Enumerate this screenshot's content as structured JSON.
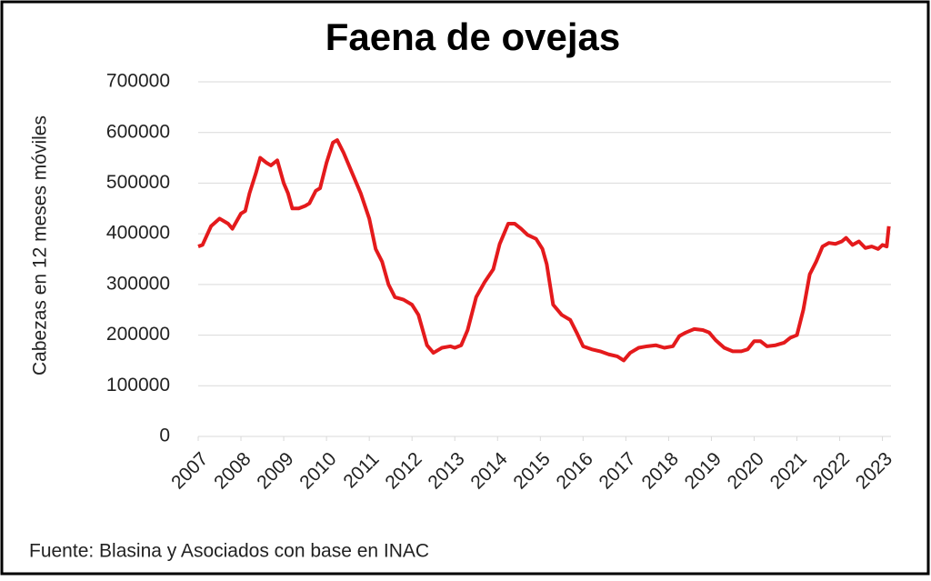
{
  "chart_data": {
    "type": "line",
    "title": "Faena de ovejas",
    "y_label": "Cabezas en 12 meses móviles",
    "source": "Fuente: Blasina y Asociados con base en INAC",
    "series": [
      {
        "name": "Faena de ovejas",
        "color": "#e41a1c",
        "x": [
          2007.0,
          2007.1,
          2007.3,
          2007.5,
          2007.7,
          2007.8,
          2008.0,
          2008.1,
          2008.2,
          2008.35,
          2008.45,
          2008.6,
          2008.7,
          2008.85,
          2009.0,
          2009.1,
          2009.2,
          2009.35,
          2009.5,
          2009.6,
          2009.75,
          2009.85,
          2010.0,
          2010.15,
          2010.25,
          2010.4,
          2010.6,
          2010.8,
          2011.0,
          2011.15,
          2011.3,
          2011.45,
          2011.6,
          2011.8,
          2012.0,
          2012.15,
          2012.35,
          2012.5,
          2012.7,
          2012.9,
          2013.0,
          2013.15,
          2013.3,
          2013.5,
          2013.7,
          2013.9,
          2014.05,
          2014.25,
          2014.4,
          2014.55,
          2014.7,
          2014.9,
          2015.05,
          2015.15,
          2015.3,
          2015.5,
          2015.7,
          2015.85,
          2016.0,
          2016.2,
          2016.4,
          2016.6,
          2016.8,
          2016.95,
          2017.1,
          2017.3,
          2017.5,
          2017.7,
          2017.9,
          2018.1,
          2018.25,
          2018.4,
          2018.6,
          2018.8,
          2018.95,
          2019.1,
          2019.3,
          2019.5,
          2019.7,
          2019.85,
          2020.0,
          2020.15,
          2020.3,
          2020.5,
          2020.7,
          2020.85,
          2021.0,
          2021.15,
          2021.3,
          2021.45,
          2021.6,
          2021.75,
          2021.9,
          2022.05,
          2022.15,
          2022.3,
          2022.45,
          2022.6,
          2022.75,
          2022.9,
          2023.0,
          2023.1,
          2023.15
        ],
        "values": [
          375000,
          378000,
          415000,
          430000,
          420000,
          410000,
          440000,
          445000,
          480000,
          520000,
          550000,
          540000,
          535000,
          545000,
          500000,
          480000,
          450000,
          450000,
          455000,
          460000,
          485000,
          490000,
          540000,
          580000,
          585000,
          560000,
          520000,
          480000,
          430000,
          370000,
          345000,
          300000,
          275000,
          270000,
          260000,
          240000,
          180000,
          165000,
          175000,
          178000,
          175000,
          180000,
          210000,
          275000,
          305000,
          330000,
          380000,
          420000,
          420000,
          410000,
          398000,
          390000,
          370000,
          340000,
          260000,
          240000,
          230000,
          205000,
          178000,
          172000,
          168000,
          162000,
          158000,
          150000,
          165000,
          175000,
          178000,
          180000,
          175000,
          178000,
          198000,
          205000,
          212000,
          210000,
          205000,
          190000,
          175000,
          168000,
          168000,
          172000,
          188000,
          188000,
          178000,
          180000,
          185000,
          195000,
          200000,
          250000,
          320000,
          345000,
          375000,
          382000,
          380000,
          385000,
          392000,
          378000,
          385000,
          372000,
          375000,
          370000,
          378000,
          375000,
          415000
        ]
      }
    ],
    "xlim": [
      2007,
      2023.2
    ],
    "xticks": [
      2007,
      2008,
      2009,
      2010,
      2011,
      2012,
      2013,
      2014,
      2015,
      2016,
      2017,
      2018,
      2019,
      2020,
      2021,
      2022,
      2023
    ],
    "ylim": [
      0,
      700000
    ],
    "yticks": [
      0,
      100000,
      200000,
      300000,
      400000,
      500000,
      600000,
      700000
    ],
    "grid": true
  }
}
